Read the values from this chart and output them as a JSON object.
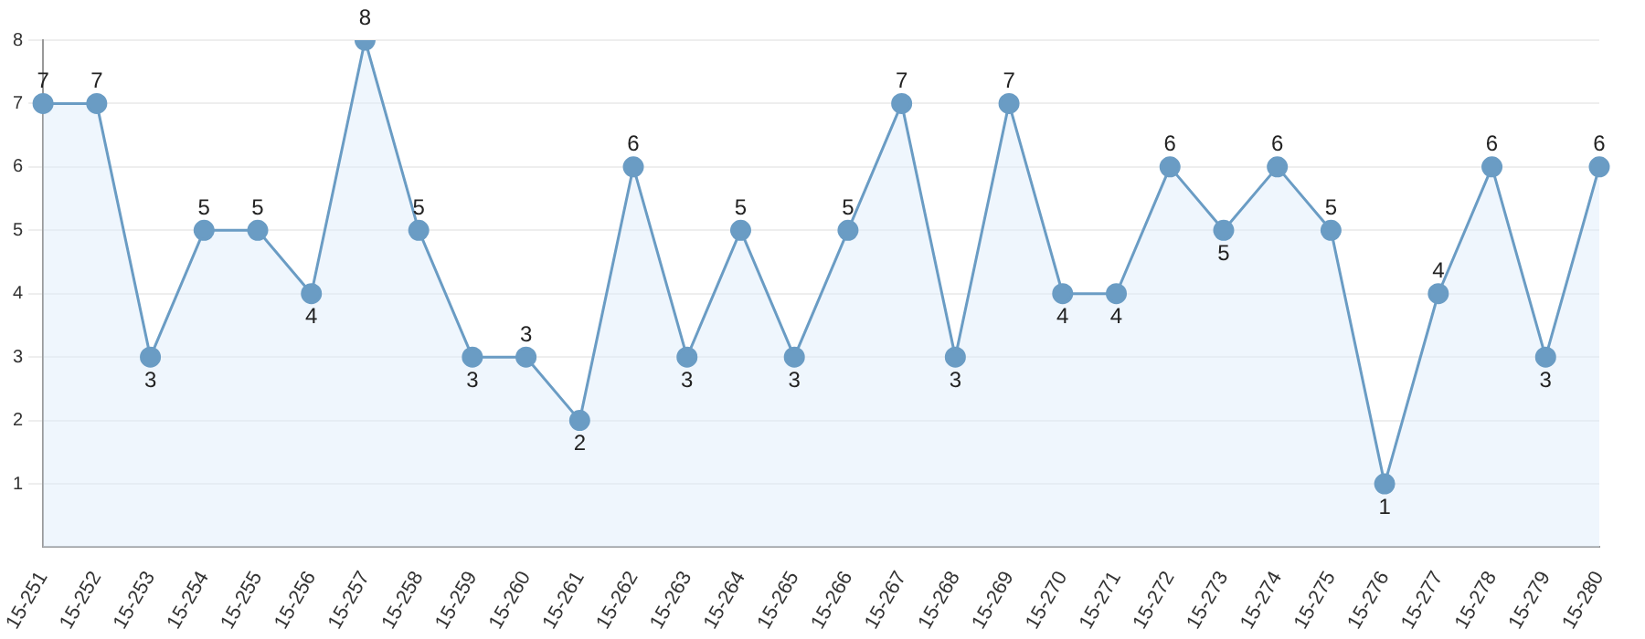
{
  "chart_data": {
    "type": "area",
    "categories": [
      "15-251",
      "15-252",
      "15-253",
      "15-254",
      "15-255",
      "15-256",
      "15-257",
      "15-258",
      "15-259",
      "15-260",
      "15-261",
      "15-262",
      "15-263",
      "15-264",
      "15-265",
      "15-266",
      "15-267",
      "15-268",
      "15-269",
      "15-270",
      "15-271",
      "15-272",
      "15-273",
      "15-274",
      "15-275",
      "15-276",
      "15-277",
      "15-278",
      "15-279",
      "15-280"
    ],
    "series": [
      {
        "color": "#6a9cc4",
        "values": [
          7,
          7,
          3,
          5,
          5,
          4,
          8,
          5,
          3,
          3,
          2,
          6,
          3,
          5,
          3,
          5,
          7,
          3,
          7,
          4,
          4,
          6,
          5,
          6,
          5,
          1,
          4,
          6,
          3,
          6
        ]
      }
    ],
    "ylim": [
      0,
      8
    ],
    "yticks": [
      1,
      2,
      3,
      4,
      5,
      6,
      7,
      8
    ],
    "grid": "y",
    "legend": false,
    "marker": "circle",
    "data_labels": true
  }
}
